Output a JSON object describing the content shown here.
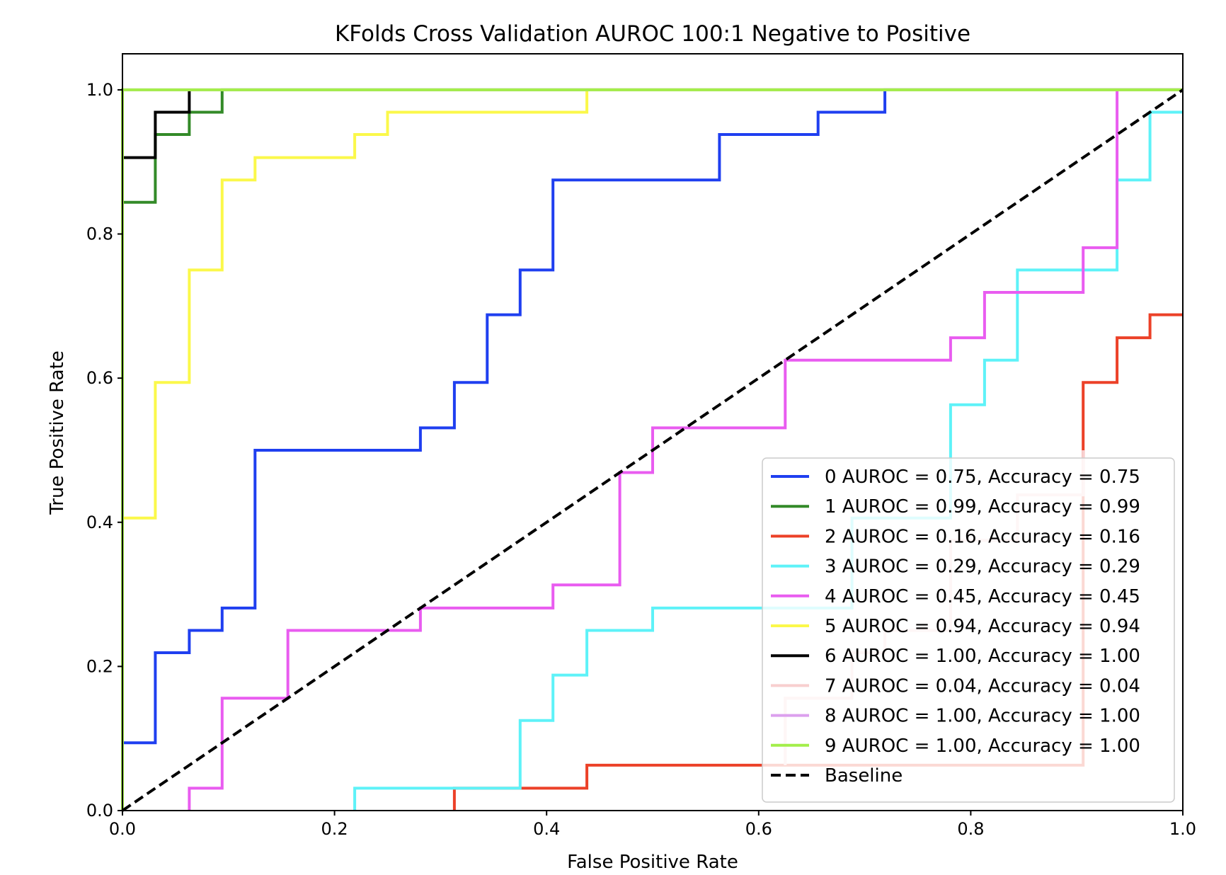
{
  "chart_data": {
    "type": "line",
    "title": "KFolds Cross Validation AUROC 100:1 Negative to Positive",
    "xlabel": "False Positive Rate",
    "ylabel": "True Positive Rate",
    "xlim": [
      0.0,
      1.0
    ],
    "ylim": [
      0.0,
      1.05
    ],
    "xticks": [
      0.0,
      0.2,
      0.4,
      0.6,
      0.8,
      1.0
    ],
    "yticks": [
      0.0,
      0.2,
      0.4,
      0.6,
      0.8,
      1.0
    ],
    "xtick_labels": [
      "0.0",
      "0.2",
      "0.4",
      "0.6",
      "0.8",
      "1.0"
    ],
    "ytick_labels": [
      "0.0",
      "0.2",
      "0.4",
      "0.6",
      "0.8",
      "1.0"
    ],
    "grid": false,
    "legend_position": "lower-right",
    "series": [
      {
        "name": "0 AUROC = 0.75, Accuracy = 0.75",
        "color": "#1f3ff0",
        "style": "solid",
        "x": [
          0,
          0,
          0.031,
          0.031,
          0.063,
          0.063,
          0.094,
          0.094,
          0.125,
          0.125,
          0.281,
          0.281,
          0.313,
          0.313,
          0.344,
          0.344,
          0.375,
          0.375,
          0.406,
          0.406,
          0.563,
          0.563,
          0.656,
          0.656,
          0.719,
          0.719,
          1.0
        ],
        "y": [
          0,
          0.094,
          0.094,
          0.219,
          0.219,
          0.25,
          0.25,
          0.281,
          0.281,
          0.5,
          0.5,
          0.531,
          0.531,
          0.594,
          0.594,
          0.688,
          0.688,
          0.75,
          0.75,
          0.875,
          0.875,
          0.938,
          0.938,
          0.969,
          0.969,
          1.0,
          1.0
        ]
      },
      {
        "name": "1 AUROC = 0.99, Accuracy = 0.99",
        "color": "#338a28",
        "style": "solid",
        "x": [
          0,
          0,
          0.031,
          0.031,
          0.063,
          0.063,
          0.094,
          0.094,
          1.0
        ],
        "y": [
          0,
          0.844,
          0.844,
          0.938,
          0.938,
          0.969,
          0.969,
          1.0,
          1.0
        ]
      },
      {
        "name": "2 AUROC = 0.16, Accuracy = 0.16",
        "color": "#ec4128",
        "style": "solid",
        "x": [
          0.313,
          0.313,
          0.438,
          0.438,
          0.906,
          0.906,
          0.938,
          0.938,
          0.969,
          0.969,
          1.0
        ],
        "y": [
          0,
          0.031,
          0.031,
          0.063,
          0.063,
          0.594,
          0.594,
          0.656,
          0.656,
          0.688,
          0.688
        ]
      },
      {
        "name": "3 AUROC = 0.29, Accuracy = 0.29",
        "color": "#5ef2f8",
        "style": "solid",
        "x": [
          0.219,
          0.219,
          0.375,
          0.375,
          0.406,
          0.406,
          0.438,
          0.438,
          0.5,
          0.5,
          0.688,
          0.688,
          0.781,
          0.781,
          0.813,
          0.813,
          0.844,
          0.844,
          0.938,
          0.938,
          0.969,
          0.969,
          1.0
        ],
        "y": [
          0,
          0.031,
          0.031,
          0.125,
          0.125,
          0.188,
          0.188,
          0.25,
          0.25,
          0.281,
          0.281,
          0.406,
          0.406,
          0.563,
          0.563,
          0.625,
          0.625,
          0.75,
          0.75,
          0.875,
          0.875,
          0.969,
          0.969
        ]
      },
      {
        "name": "4 AUROC = 0.45, Accuracy = 0.45",
        "color": "#e95cf0",
        "style": "solid",
        "x": [
          0.063,
          0.063,
          0.094,
          0.094,
          0.156,
          0.156,
          0.281,
          0.281,
          0.406,
          0.406,
          0.469,
          0.469,
          0.5,
          0.5,
          0.625,
          0.625,
          0.781,
          0.781,
          0.813,
          0.813,
          0.906,
          0.906,
          0.938,
          0.938
        ],
        "y": [
          0,
          0.031,
          0.031,
          0.156,
          0.156,
          0.25,
          0.25,
          0.281,
          0.281,
          0.313,
          0.313,
          0.469,
          0.469,
          0.531,
          0.531,
          0.625,
          0.625,
          0.656,
          0.656,
          0.719,
          0.719,
          0.781,
          0.781,
          1.0
        ]
      },
      {
        "name": "5 AUROC = 0.94, Accuracy = 0.94",
        "color": "#fbf84a",
        "style": "solid",
        "x": [
          0,
          0,
          0.031,
          0.031,
          0.063,
          0.063,
          0.094,
          0.094,
          0.125,
          0.125,
          0.219,
          0.219,
          0.25,
          0.25,
          0.438,
          0.438,
          1.0
        ],
        "y": [
          0,
          0.406,
          0.406,
          0.594,
          0.594,
          0.75,
          0.75,
          0.875,
          0.875,
          0.906,
          0.906,
          0.938,
          0.938,
          0.969,
          0.969,
          1.0,
          1.0
        ]
      },
      {
        "name": "6 AUROC = 1.00, Accuracy = 1.00",
        "color": "#000000",
        "style": "solid",
        "x": [
          0,
          0,
          0.031,
          0.031,
          0.063,
          0.063
        ],
        "y": [
          0.906,
          0.906,
          0.906,
          0.969,
          0.969,
          1.0
        ]
      },
      {
        "name": "7 AUROC = 0.04, Accuracy = 0.04",
        "color": "#f8cfcf",
        "style": "solid",
        "x": [
          0.625,
          0.625,
          0.688,
          0.688,
          0.719,
          0.719,
          0.781,
          0.781,
          0.813,
          0.813,
          0.844,
          0.844,
          0.906,
          0.906
        ],
        "y": [
          0.063,
          0.156,
          0.156,
          0.219,
          0.219,
          0.25,
          0.25,
          0.375,
          0.375,
          0.375,
          0.375,
          0.438,
          0.438,
          0.5
        ]
      },
      {
        "name": "8 AUROC = 1.00, Accuracy = 1.00",
        "color": "#dca0ee",
        "style": "solid",
        "x": [
          0,
          0,
          1.0
        ],
        "y": [
          0,
          1.0,
          1.0
        ]
      },
      {
        "name": "9 AUROC = 1.00, Accuracy = 1.00",
        "color": "#a3ee4a",
        "style": "solid",
        "x": [
          0,
          0,
          1.0
        ],
        "y": [
          0,
          1.0,
          1.0
        ]
      },
      {
        "name": "Baseline",
        "color": "#000000",
        "style": "dashed",
        "x": [
          0,
          1.0
        ],
        "y": [
          0,
          1.0
        ]
      }
    ]
  }
}
